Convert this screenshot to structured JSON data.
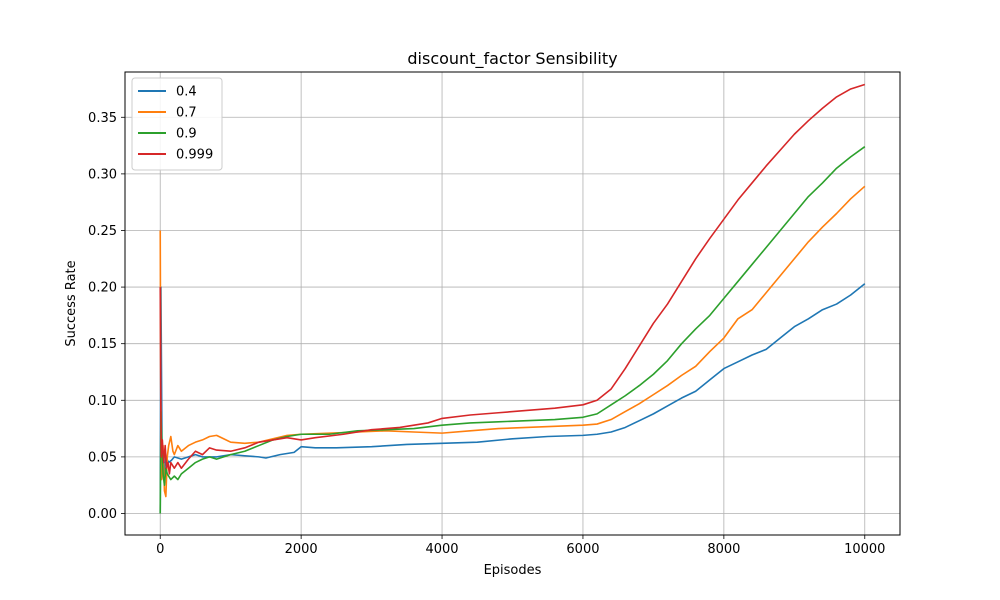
{
  "chart_data": {
    "type": "line",
    "title": "discount_factor Sensibility",
    "xlabel": "Episodes",
    "ylabel": "Success Rate",
    "xlim": [
      -500,
      10500
    ],
    "ylim": [
      -0.019,
      0.39
    ],
    "xticks": [
      0,
      2000,
      4000,
      6000,
      8000,
      10000
    ],
    "yticks": [
      0.0,
      0.05,
      0.1,
      0.15,
      0.2,
      0.25,
      0.3,
      0.35
    ],
    "xtick_labels": [
      "0",
      "2000",
      "4000",
      "6000",
      "8000",
      "10000"
    ],
    "ytick_labels": [
      "0.00",
      "0.05",
      "0.10",
      "0.15",
      "0.20",
      "0.25",
      "0.30",
      "0.35"
    ],
    "grid": true,
    "legend_position": "top-left",
    "series": [
      {
        "name": "0.4",
        "color": "#1f77b4",
        "x": [
          0,
          10,
          25,
          50,
          80,
          120,
          160,
          200,
          300,
          400,
          500,
          600,
          800,
          1000,
          1200,
          1400,
          1500,
          1700,
          1900,
          2000,
          2200,
          2500,
          3000,
          3500,
          4000,
          4500,
          5000,
          5500,
          6000,
          6200,
          6400,
          6600,
          6800,
          7000,
          7200,
          7400,
          7600,
          7800,
          8000,
          8200,
          8400,
          8600,
          8800,
          9000,
          9200,
          9400,
          9600,
          9800,
          10000
        ],
        "y": [
          0.0,
          0.2,
          0.06,
          0.03,
          0.05,
          0.045,
          0.047,
          0.05,
          0.048,
          0.05,
          0.052,
          0.05,
          0.05,
          0.052,
          0.051,
          0.05,
          0.049,
          0.052,
          0.054,
          0.059,
          0.058,
          0.058,
          0.059,
          0.061,
          0.062,
          0.063,
          0.066,
          0.068,
          0.069,
          0.07,
          0.072,
          0.076,
          0.082,
          0.088,
          0.095,
          0.102,
          0.108,
          0.118,
          0.128,
          0.134,
          0.14,
          0.145,
          0.155,
          0.165,
          0.172,
          0.18,
          0.185,
          0.193,
          0.203
        ]
      },
      {
        "name": "0.7",
        "color": "#ff7f0e",
        "x": [
          0,
          8,
          20,
          40,
          60,
          80,
          100,
          120,
          150,
          180,
          200,
          250,
          300,
          400,
          500,
          600,
          700,
          800,
          900,
          1000,
          1200,
          1400,
          1600,
          1800,
          2000,
          2400,
          2800,
          3200,
          3600,
          4000,
          4400,
          4800,
          5200,
          5600,
          6000,
          6200,
          6400,
          6600,
          6800,
          7000,
          7200,
          7400,
          7600,
          7800,
          8000,
          8200,
          8400,
          8600,
          8800,
          9000,
          9200,
          9400,
          9600,
          9800,
          10000
        ],
        "y": [
          0.25,
          0.1,
          0.03,
          0.06,
          0.02,
          0.015,
          0.05,
          0.06,
          0.068,
          0.055,
          0.052,
          0.06,
          0.055,
          0.06,
          0.063,
          0.065,
          0.068,
          0.069,
          0.066,
          0.063,
          0.062,
          0.063,
          0.066,
          0.069,
          0.07,
          0.071,
          0.072,
          0.073,
          0.072,
          0.071,
          0.073,
          0.075,
          0.076,
          0.077,
          0.078,
          0.079,
          0.083,
          0.09,
          0.097,
          0.105,
          0.113,
          0.122,
          0.13,
          0.143,
          0.155,
          0.172,
          0.18,
          0.195,
          0.21,
          0.225,
          0.24,
          0.253,
          0.265,
          0.278,
          0.289
        ]
      },
      {
        "name": "0.9",
        "color": "#2ca02c",
        "x": [
          0,
          10,
          20,
          40,
          60,
          80,
          100,
          150,
          200,
          250,
          300,
          400,
          500,
          600,
          700,
          800,
          1000,
          1200,
          1400,
          1600,
          1800,
          2000,
          2400,
          2800,
          3200,
          3600,
          4000,
          4400,
          4800,
          5200,
          5600,
          6000,
          6200,
          6400,
          6600,
          6800,
          7000,
          7200,
          7400,
          7600,
          7800,
          8000,
          8200,
          8400,
          8600,
          8800,
          9000,
          9200,
          9400,
          9600,
          9800,
          10000
        ],
        "y": [
          0.0,
          0.09,
          0.07,
          0.035,
          0.025,
          0.04,
          0.035,
          0.03,
          0.033,
          0.03,
          0.035,
          0.04,
          0.045,
          0.048,
          0.05,
          0.048,
          0.052,
          0.055,
          0.06,
          0.065,
          0.068,
          0.07,
          0.07,
          0.073,
          0.074,
          0.075,
          0.078,
          0.08,
          0.081,
          0.082,
          0.083,
          0.085,
          0.088,
          0.096,
          0.104,
          0.113,
          0.123,
          0.135,
          0.15,
          0.163,
          0.175,
          0.19,
          0.205,
          0.22,
          0.235,
          0.25,
          0.265,
          0.28,
          0.292,
          0.305,
          0.315,
          0.324
        ]
      },
      {
        "name": "0.999",
        "color": "#d62728",
        "x": [
          0,
          8,
          15,
          30,
          50,
          70,
          90,
          110,
          130,
          150,
          200,
          250,
          300,
          400,
          500,
          600,
          700,
          800,
          1000,
          1200,
          1400,
          1600,
          1800,
          2000,
          2200,
          2600,
          3000,
          3400,
          3800,
          4000,
          4400,
          4800,
          5200,
          5600,
          6000,
          6200,
          6400,
          6600,
          6800,
          7000,
          7200,
          7400,
          7600,
          7800,
          8000,
          8200,
          8400,
          8600,
          8800,
          9000,
          9200,
          9400,
          9600,
          9800,
          10000
        ],
        "y": [
          0.2,
          0.1,
          0.05,
          0.065,
          0.045,
          0.06,
          0.04,
          0.045,
          0.035,
          0.045,
          0.04,
          0.045,
          0.04,
          0.048,
          0.055,
          0.052,
          0.058,
          0.056,
          0.055,
          0.058,
          0.063,
          0.065,
          0.067,
          0.065,
          0.067,
          0.07,
          0.074,
          0.076,
          0.08,
          0.084,
          0.087,
          0.089,
          0.091,
          0.093,
          0.096,
          0.1,
          0.11,
          0.128,
          0.148,
          0.168,
          0.185,
          0.205,
          0.225,
          0.243,
          0.26,
          0.277,
          0.292,
          0.307,
          0.321,
          0.335,
          0.347,
          0.358,
          0.368,
          0.375,
          0.379
        ]
      }
    ]
  }
}
